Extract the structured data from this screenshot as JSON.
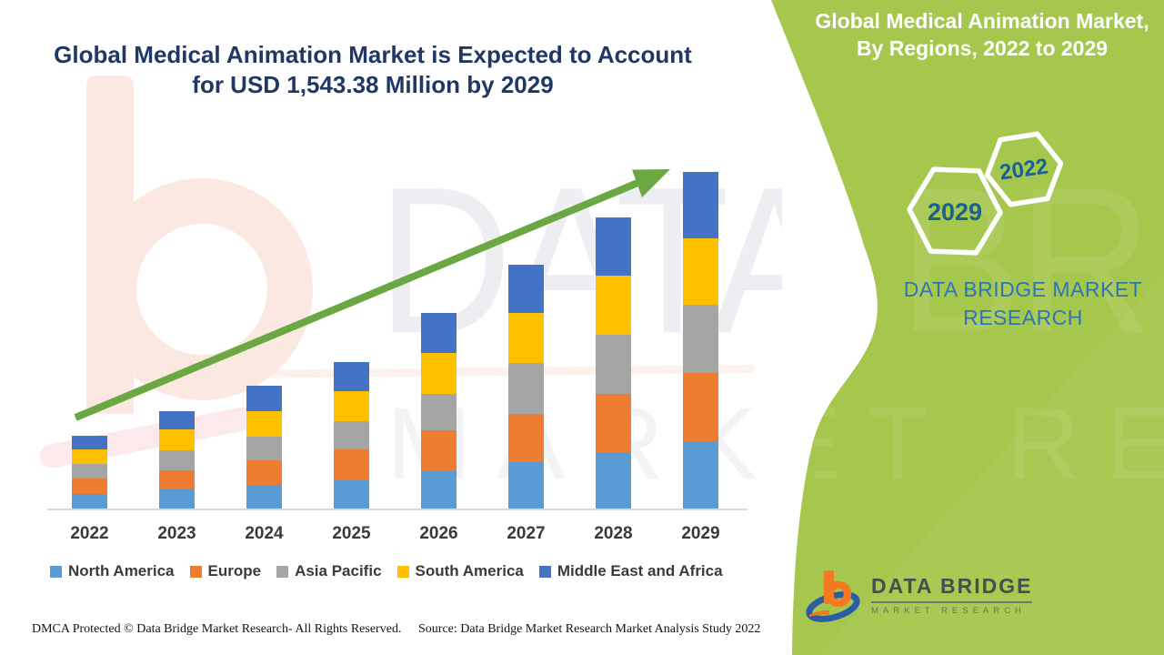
{
  "header": {
    "title_line1": "Global Medical Animation Market is Expected to Account",
    "title_line2": "for USD 1,543.38 Million by 2029"
  },
  "side_panel": {
    "title_line1": "Global Medical Animation Market,",
    "title_line2": "By Regions, 2022 to 2029",
    "hexagon_back_label": "2029",
    "hexagon_front_label": "2022",
    "brand_line1": "DATA BRIDGE MARKET",
    "brand_line2": "RESEARCH",
    "logo": {
      "title": "DATA BRIDGE",
      "subtitle": "MARKET RESEARCH"
    }
  },
  "watermarks": {
    "row1": "DATA BRIDGE",
    "row2": "MARKET RESEARCH"
  },
  "footer": {
    "dmca": "DMCA Protected © Data Bridge Market Research- All Rights Reserved.",
    "source": "Source: Data Bridge Market Research Market Analysis Study 2022"
  },
  "chart_data": {
    "type": "bar",
    "stacked": true,
    "title": "Global Medical Animation Market is Expected to Account for USD 1,543.38 Million by 2029",
    "unit": "USD Million",
    "categories": [
      "2022",
      "2023",
      "2024",
      "2025",
      "2026",
      "2027",
      "2028",
      "2029"
    ],
    "series": [
      {
        "name": "North America",
        "color": "#5B9BD5",
        "values": [
          66,
          90,
          108,
          130,
          172,
          213,
          259,
          310
        ]
      },
      {
        "name": "Europe",
        "color": "#ED7D31",
        "values": [
          70,
          85,
          113,
          142,
          188,
          222,
          267,
          309
        ]
      },
      {
        "name": "Asia Pacific",
        "color": "#A5A5A5",
        "values": [
          67,
          92,
          109,
          126,
          167,
          230,
          271,
          313
        ]
      },
      {
        "name": "South America",
        "color": "#FFC000",
        "values": [
          66,
          94,
          116,
          141,
          184,
          229,
          270,
          306
        ]
      },
      {
        "name": "Middle East and Africa",
        "color": "#4472C4",
        "values": [
          64,
          84,
          115,
          130,
          184,
          221,
          266,
          305.38
        ]
      }
    ],
    "totals": [
      333,
      445,
      561,
      669,
      895,
      1115,
      1333,
      1543.38
    ],
    "highlight_value_2029": 1543.38,
    "legend_position": "bottom",
    "y_axis_visible": false,
    "gridlines": false,
    "trend_arrow": true,
    "trend_arrow_color": "#6BA843"
  },
  "colors": {
    "accent_green": "#A5C74D",
    "title_navy": "#1F3864",
    "hexagon_year_blue": "#1A6191",
    "brand_blue": "#2E75B6",
    "axis_gray": "#D9D9D9",
    "label_gray": "#3A3A3A"
  }
}
